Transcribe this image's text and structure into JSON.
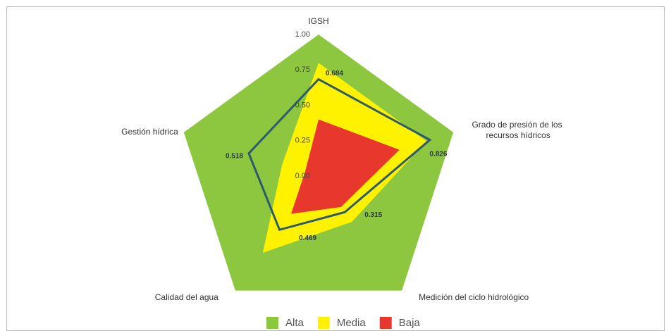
{
  "chart_data": {
    "type": "radar",
    "categories": [
      "IGSH",
      "Grado de presión de los recursos hídricos",
      "Medición del ciclo hidrológico",
      "Calidad del agua",
      "Gestión hídrica"
    ],
    "series": [
      {
        "name": "Alta",
        "color": "#8dc63f",
        "values": [
          1,
          1,
          1,
          1,
          1
        ]
      },
      {
        "name": "Media",
        "color": "#fff200",
        "values": [
          0.8,
          0.8,
          0.4,
          0.67,
          0.27
        ]
      },
      {
        "name": "Baja",
        "color": "#e8372c",
        "values": [
          0.4,
          0.6,
          0.27,
          0.33,
          0.1
        ]
      },
      {
        "color": "#2e5a6b",
        "values": [
          0.684,
          0.826,
          0.315,
          0.469,
          0.518
        ]
      }
    ],
    "rlim": [
      0,
      1
    ],
    "rticks": [
      {
        "value": 0,
        "label": "0.00"
      },
      {
        "value": 0.25,
        "label": "0.25"
      },
      {
        "value": 0.5,
        "label": "0.50"
      },
      {
        "value": 0.75,
        "label": "0.75"
      },
      {
        "value": 1,
        "label": "1.00"
      }
    ]
  }
}
